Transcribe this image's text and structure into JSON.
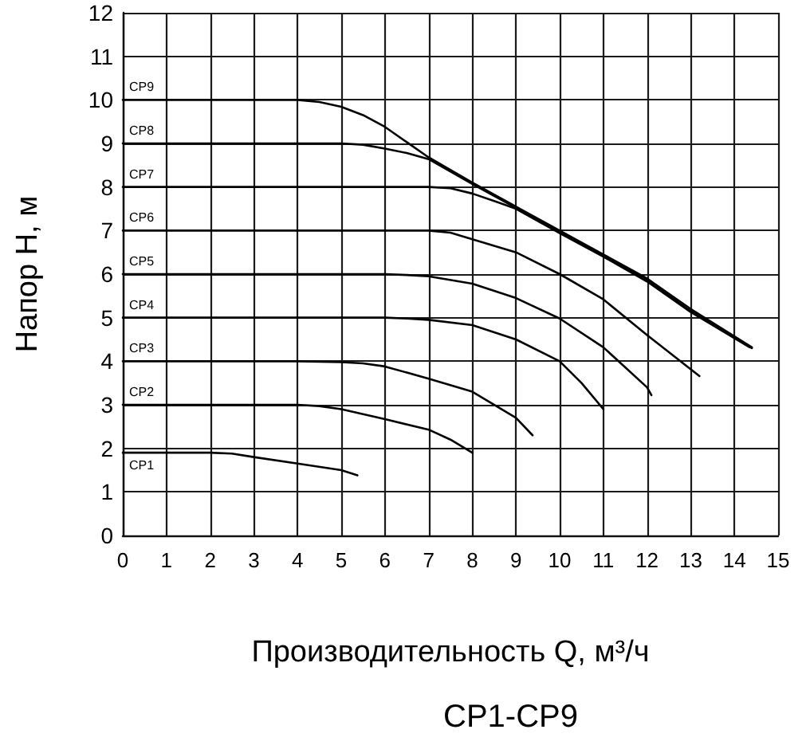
{
  "chart_data": {
    "type": "line",
    "xlabel": "Производительность Q, м³/ч",
    "ylabel": "Напор H, м",
    "annotations": [
      "CP1-CP9"
    ],
    "xlim": [
      0,
      15
    ],
    "ylim": [
      0,
      12
    ],
    "xticks": [
      0,
      1,
      2,
      3,
      4,
      5,
      6,
      7,
      8,
      9,
      10,
      11,
      12,
      13,
      14,
      15
    ],
    "yticks": [
      0,
      1,
      2,
      3,
      4,
      5,
      6,
      7,
      8,
      9,
      10,
      11,
      12
    ],
    "grid": true,
    "legend": false,
    "marker": "none",
    "line_style": "solid",
    "series": [
      {
        "name": "CP1",
        "color": "#000000",
        "x": [
          0,
          1,
          2,
          2.5,
          3,
          4,
          5,
          5.37
        ],
        "values": [
          1.9,
          1.9,
          1.9,
          1.88,
          1.8,
          1.65,
          1.5,
          1.38
        ]
      },
      {
        "name": "CP2",
        "color": "#000000",
        "x": [
          0,
          1,
          2,
          3,
          4,
          4.5,
          5,
          6,
          7,
          7.5,
          8
        ],
        "values": [
          3,
          3,
          3,
          3,
          3,
          2.97,
          2.9,
          2.67,
          2.43,
          2.2,
          1.9
        ]
      },
      {
        "name": "CP3",
        "color": "#000000",
        "x": [
          0,
          1,
          2,
          3,
          4,
          5,
          5.5,
          6,
          7,
          8,
          9,
          9.38
        ],
        "values": [
          4,
          4,
          4,
          4,
          4,
          3.98,
          3.95,
          3.88,
          3.6,
          3.3,
          2.7,
          2.3
        ]
      },
      {
        "name": "CP4",
        "color": "#000000",
        "x": [
          0,
          1,
          2,
          3,
          4,
          5,
          6,
          6.5,
          7,
          8,
          9,
          10,
          10.5,
          11
        ],
        "values": [
          5,
          5,
          5,
          5,
          5,
          5,
          5,
          4.98,
          4.95,
          4.83,
          4.5,
          4,
          3.5,
          2.9
        ]
      },
      {
        "name": "CP5",
        "color": "#000000",
        "x": [
          0,
          1,
          2,
          3,
          4,
          5,
          6,
          6.5,
          7,
          8,
          9,
          10,
          11,
          12,
          12.1
        ],
        "values": [
          6,
          6,
          6,
          6,
          6,
          6,
          6,
          5.98,
          5.95,
          5.78,
          5.45,
          4.98,
          4.32,
          3.4,
          3.22
        ]
      },
      {
        "name": "CP6",
        "color": "#000000",
        "x": [
          0,
          1,
          2,
          3,
          4,
          5,
          6,
          7,
          7.5,
          8,
          9,
          10,
          11,
          12,
          13.2
        ],
        "values": [
          7,
          7,
          7,
          7,
          7,
          7,
          7,
          7,
          6.95,
          6.8,
          6.5,
          6,
          5.42,
          4.6,
          3.66
        ]
      },
      {
        "name": "CP7",
        "color": "#000000",
        "x": [
          0,
          1,
          2,
          3,
          4,
          5,
          6,
          7,
          7.5,
          8,
          8.5,
          9,
          10,
          11,
          12,
          13,
          14.35
        ],
        "values": [
          8,
          8,
          8,
          8,
          8,
          8,
          8,
          8,
          7.97,
          7.85,
          7.68,
          7.5,
          6.94,
          6.4,
          5.83,
          5.13,
          4.32
        ]
      },
      {
        "name": "CP8",
        "color": "#000000",
        "x": [
          0,
          1,
          2,
          3,
          4,
          5,
          5.5,
          6,
          6.5,
          7,
          8,
          9,
          10,
          11,
          12,
          13,
          14.4
        ],
        "values": [
          9,
          9,
          9,
          9,
          9,
          9,
          8.97,
          8.88,
          8.78,
          8.64,
          8.07,
          7.52,
          6.97,
          6.42,
          5.86,
          5.15,
          4.3
        ]
      },
      {
        "name": "CP9",
        "color": "#000000",
        "x": [
          0,
          1,
          2,
          3,
          4,
          4.5,
          5,
          5.5,
          6,
          6.5,
          7,
          8,
          9,
          10,
          11,
          12,
          13,
          14.4
        ],
        "values": [
          10,
          10,
          10,
          10,
          10,
          9.95,
          9.84,
          9.65,
          9.38,
          9.03,
          8.68,
          8.1,
          7.55,
          7,
          6.45,
          5.9,
          5.2,
          4.32
        ]
      }
    ]
  }
}
